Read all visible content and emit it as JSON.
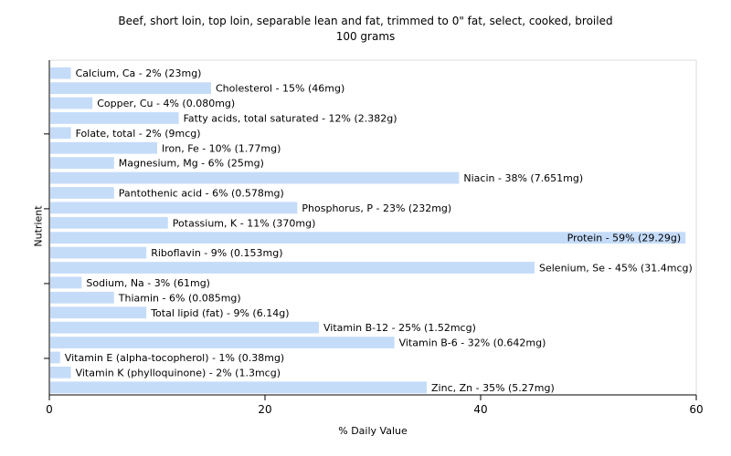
{
  "chart_data": {
    "type": "bar",
    "orientation": "horizontal",
    "title": "Beef, short loin, top loin, separable lean and fat, trimmed to 0\" fat, select, cooked, broiled",
    "subtitle": "100 grams",
    "xlabel": "% Daily Value",
    "ylabel": "Nutrient",
    "xlim": [
      0,
      60
    ],
    "xticks": [
      "0",
      "20",
      "40",
      "60"
    ],
    "bar_color": "#c5dcf9",
    "categories": [
      "Calcium, Ca",
      "Cholesterol",
      "Copper, Cu",
      "Fatty acids, total saturated",
      "Folate, total",
      "Iron, Fe",
      "Magnesium, Mg",
      "Niacin",
      "Pantothenic acid",
      "Phosphorus, P",
      "Potassium, K",
      "Protein",
      "Riboflavin",
      "Selenium, Se",
      "Sodium, Na",
      "Thiamin",
      "Total lipid (fat)",
      "Vitamin B-12",
      "Vitamin B-6",
      "Vitamin E (alpha-tocopherol)",
      "Vitamin K (phylloquinone)",
      "Zinc, Zn"
    ],
    "values": [
      2,
      15,
      4,
      12,
      2,
      10,
      6,
      38,
      6,
      23,
      11,
      59,
      9,
      45,
      3,
      6,
      9,
      25,
      32,
      1,
      2,
      35
    ],
    "labels": [
      "Calcium, Ca - 2% (23mg)",
      "Cholesterol - 15% (46mg)",
      "Copper, Cu - 4% (0.080mg)",
      "Fatty acids, total saturated - 12% (2.382g)",
      "Folate, total - 2% (9mcg)",
      "Iron, Fe - 10% (1.77mg)",
      "Magnesium, Mg - 6% (25mg)",
      "Niacin - 38% (7.651mg)",
      "Pantothenic acid - 6% (0.578mg)",
      "Phosphorus, P - 23% (232mg)",
      "Potassium, K - 11% (370mg)",
      "Protein - 59% (29.29g)",
      "Riboflavin - 9% (0.153mg)",
      "Selenium, Se - 45% (31.4mcg)",
      "Sodium, Na - 3% (61mg)",
      "Thiamin - 6% (0.085mg)",
      "Total lipid (fat) - 9% (6.14g)",
      "Vitamin B-12 - 25% (1.52mcg)",
      "Vitamin B-6 - 32% (0.642mg)",
      "Vitamin E (alpha-tocopherol) - 1% (0.38mg)",
      "Vitamin K (phylloquinone) - 2% (1.3mcg)",
      "Zinc, Zn - 35% (5.27mg)"
    ],
    "grid": false
  }
}
